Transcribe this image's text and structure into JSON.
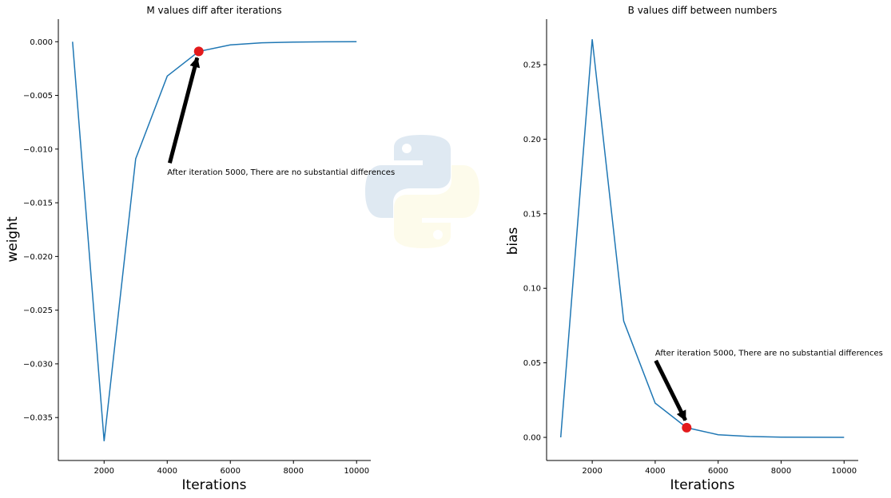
{
  "chart_data": [
    {
      "type": "line",
      "title": "M values diff after iterations",
      "xlabel": "Iterations",
      "ylabel": "weight",
      "xlim": [
        550,
        10450
      ],
      "ylim": [
        -0.039,
        0.0021
      ],
      "xticks": [
        2000,
        4000,
        6000,
        8000,
        10000
      ],
      "xtick_labels": [
        "2000",
        "4000",
        "6000",
        "8000",
        "10000"
      ],
      "yticks": [
        0.0,
        -0.005,
        -0.01,
        -0.015,
        -0.02,
        -0.025,
        -0.03,
        -0.035
      ],
      "ytick_labels": [
        "0.000",
        "−0.005",
        "−0.010",
        "−0.015",
        "−0.020",
        "−0.025",
        "−0.030",
        "−0.035"
      ],
      "grid": false,
      "series": [
        {
          "color": "#1f77b4",
          "x": [
            1000,
            2000,
            3000,
            4000,
            5000,
            6000,
            7000,
            8000,
            9000,
            10000
          ],
          "y": [
            0.0,
            -0.0372,
            -0.0109,
            -0.0032,
            -0.0009,
            -0.0003,
            -0.0001,
            -4e-05,
            -1e-05,
            0.0
          ]
        }
      ],
      "highlight": {
        "x": 5000,
        "y": -0.0009,
        "color": "#e31a1c"
      },
      "annotation": {
        "text": "After iteration 5000, There are no substantial differences",
        "text_x": 4000,
        "text_y": -0.0124,
        "arrow_from": [
          4080,
          -0.0113
        ],
        "arrow_to": [
          4950,
          -0.0015
        ]
      }
    },
    {
      "type": "line",
      "title": "B values diff between  numbers",
      "xlabel": "Iterations",
      "ylabel": "bias",
      "xlim": [
        550,
        10450
      ],
      "ylim": [
        -0.0155,
        0.2805
      ],
      "xticks": [
        2000,
        4000,
        6000,
        8000,
        10000
      ],
      "xtick_labels": [
        "2000",
        "4000",
        "6000",
        "8000",
        "10000"
      ],
      "yticks": [
        0.0,
        0.05,
        0.1,
        0.15,
        0.2,
        0.25
      ],
      "ytick_labels": [
        "0.00",
        "0.05",
        "0.10",
        "0.15",
        "0.20",
        "0.25"
      ],
      "grid": false,
      "series": [
        {
          "color": "#1f77b4",
          "x": [
            1000,
            2000,
            3000,
            4000,
            5000,
            6000,
            7000,
            8000,
            9000,
            10000
          ],
          "y": [
            0.0,
            0.267,
            0.078,
            0.023,
            0.0065,
            0.0018,
            0.0006,
            0.0002,
            0.0001,
            0.0
          ]
        }
      ],
      "highlight": {
        "x": 5000,
        "y": 0.0065,
        "color": "#e31a1c"
      },
      "annotation": {
        "text": "After iteration 5000, There are no substantial differences",
        "text_x": 4000,
        "text_y": 0.055,
        "arrow_from": [
          4020,
          0.0515
        ],
        "arrow_to": [
          4960,
          0.0115
        ]
      }
    }
  ],
  "watermark": {
    "name": "python-logo",
    "blue": "#dce7f1",
    "yellow": "#fdfbe9"
  }
}
